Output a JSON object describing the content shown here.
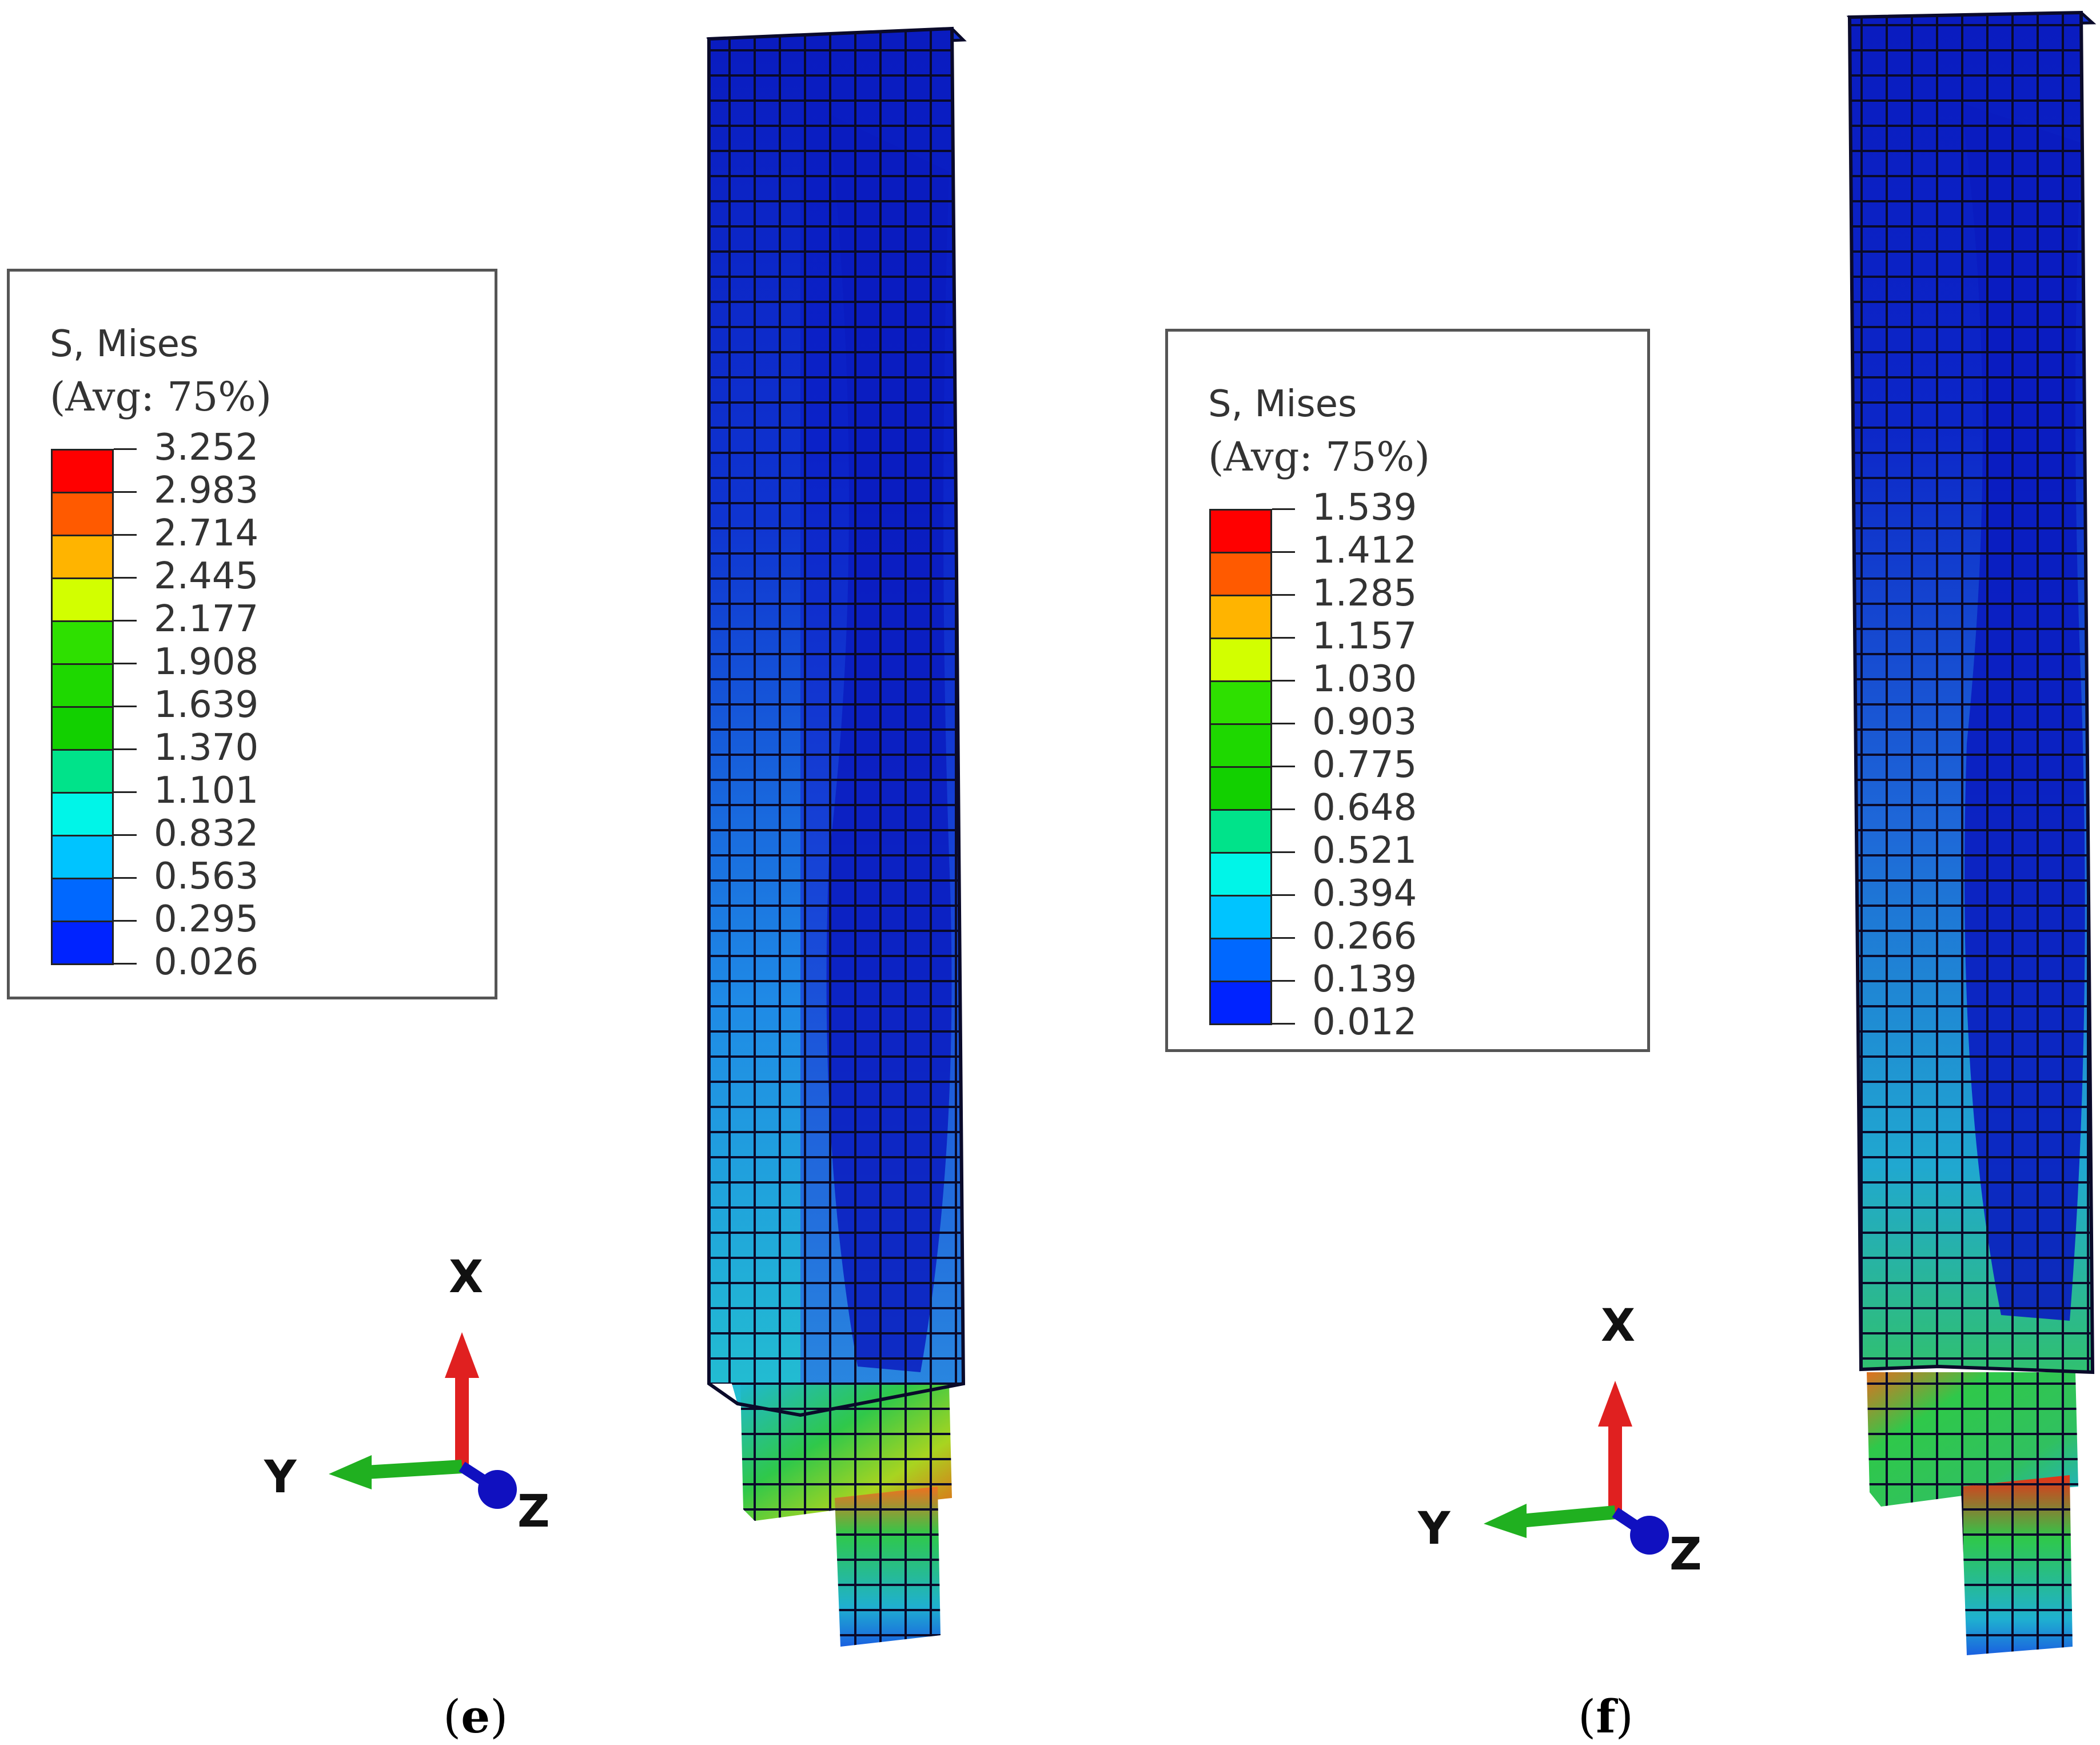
{
  "panels": [
    {
      "id": "e",
      "label_open": "(",
      "label_letter": "e",
      "label_close": ")",
      "legend": {
        "title": "S, Mises",
        "avg": "(Avg: 75%)",
        "values": [
          "3.252",
          "2.983",
          "2.714",
          "2.445",
          "2.177",
          "1.908",
          "1.639",
          "1.370",
          "1.101",
          "0.832",
          "0.563",
          "0.295",
          "0.026"
        ]
      },
      "triad": {
        "x": "X",
        "y": "Y",
        "z": "Z"
      }
    },
    {
      "id": "f",
      "label_open": "(",
      "label_letter": "f",
      "label_close": ")",
      "legend": {
        "title": "S, Mises",
        "avg": "(Avg: 75%)",
        "values": [
          "1.539",
          "1.412",
          "1.285",
          "1.157",
          "1.030",
          "0.903",
          "0.775",
          "0.648",
          "0.521",
          "0.394",
          "0.266",
          "0.139",
          "0.012"
        ]
      },
      "triad": {
        "x": "X",
        "y": "Y",
        "z": "Z"
      }
    }
  ],
  "colors": {
    "scale": [
      "#ff0000",
      "#ff5a00",
      "#ffb400",
      "#d2ff00",
      "#2ee000",
      "#1ed800",
      "#12d000",
      "#00e38a",
      "#00f5e8",
      "#00c4ff",
      "#0068ff",
      "#0023ff",
      "#0000e0"
    ],
    "deep_blue": "#0a1fc8",
    "mid_blue": "#1450e0",
    "light_blue": "#1f8ae6",
    "cyan": "#1fc0d8",
    "green": "#2fc84a",
    "yellow": "#c8d820",
    "orange": "#f08020",
    "red": "#e82010",
    "axis_x": "#e02020",
    "axis_y": "#20b020",
    "axis_z": "#1010c0"
  }
}
